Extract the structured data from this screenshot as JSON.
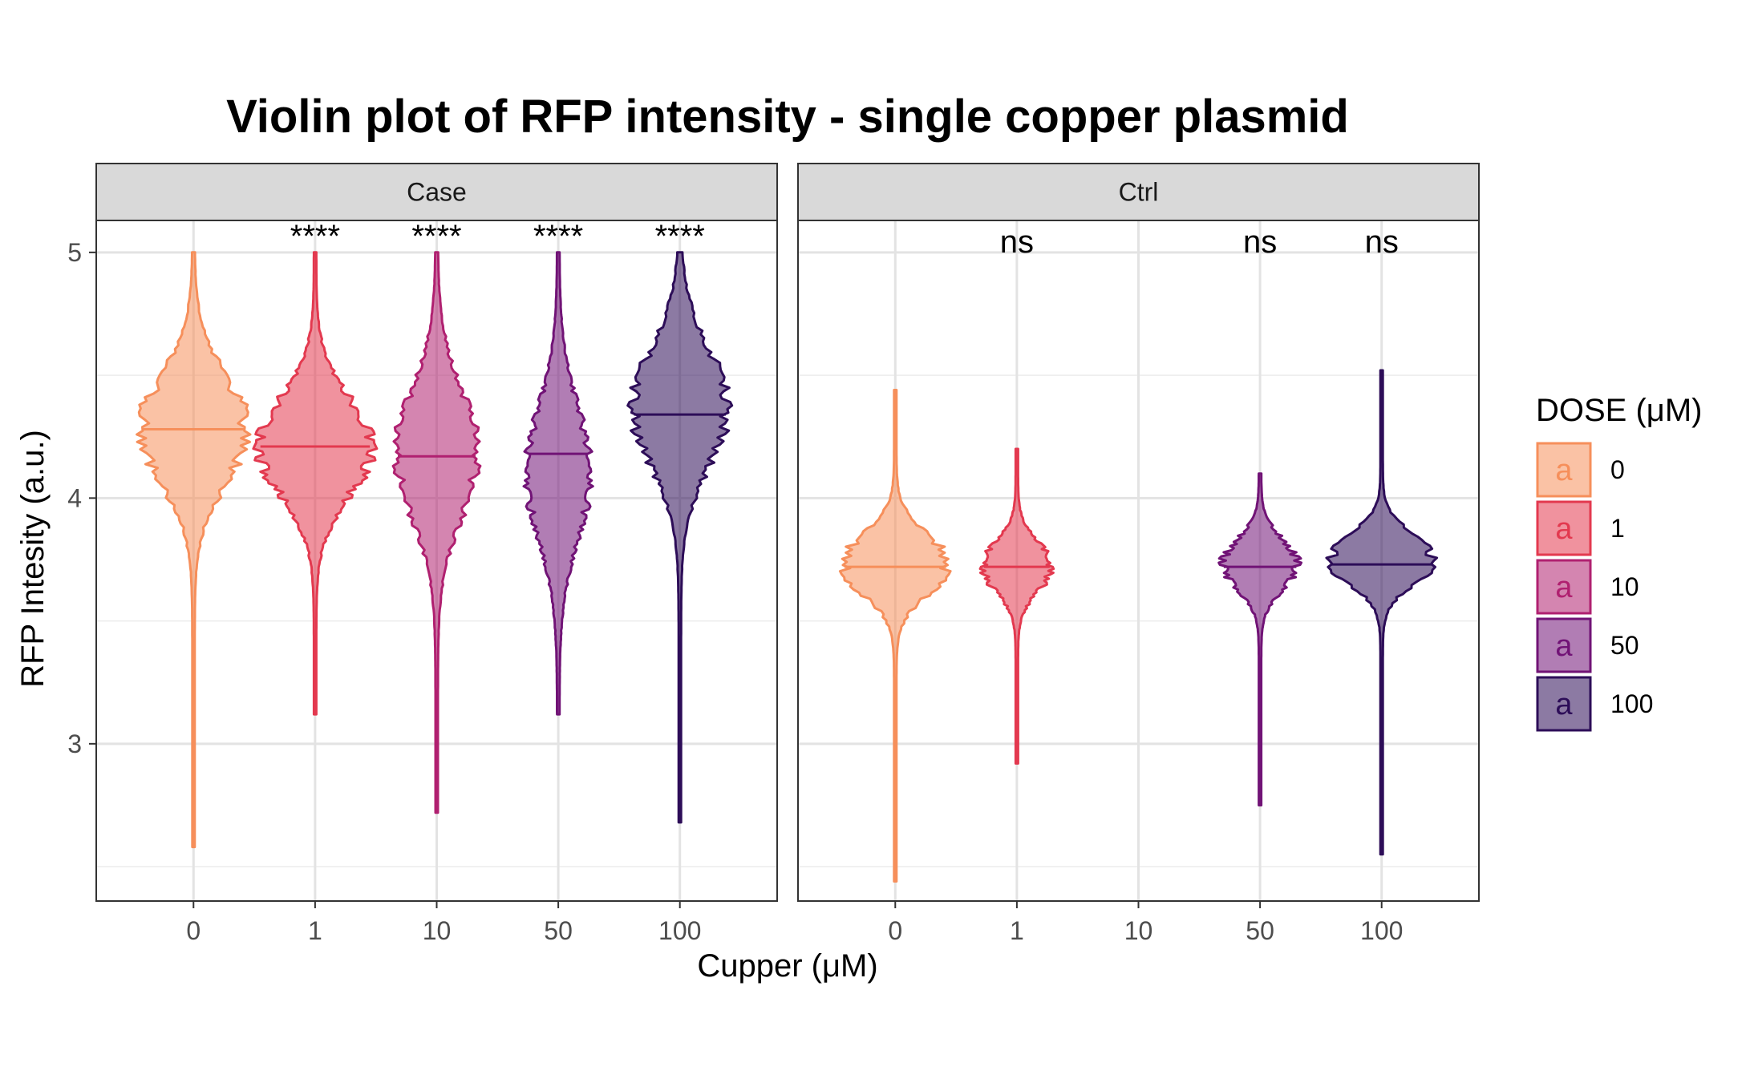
{
  "chart_data": {
    "type": "violin",
    "title": "Violin plot of RFP intensity - single copper plasmid",
    "xlabel": "Cupper (μM)",
    "ylabel": "RFP Intesity (a.u.)",
    "ylim": [
      2.36,
      5.13
    ],
    "yticks": [
      3,
      4,
      5
    ],
    "categories": [
      "0",
      "1",
      "10",
      "50",
      "100"
    ],
    "legend": {
      "title": "DOSE (μM)",
      "key_glyph": "a",
      "position": "right",
      "items": [
        {
          "label": "0",
          "color": "#F68F5B"
        },
        {
          "label": "1",
          "color": "#E3394F"
        },
        {
          "label": "10",
          "color": "#B02070"
        },
        {
          "label": "50",
          "color": "#711376"
        },
        {
          "label": "100",
          "color": "#2D0D58"
        }
      ]
    },
    "facets": [
      {
        "name": "Case",
        "violins": [
          {
            "dose": "0",
            "min": 2.58,
            "max": 5.0,
            "median": 4.28,
            "peak": 4.28,
            "spread": 0.22,
            "width": 0.42,
            "significance": ""
          },
          {
            "dose": "1",
            "min": 3.12,
            "max": 5.0,
            "median": 4.21,
            "peak": 4.21,
            "spread": 0.2,
            "width": 0.45,
            "significance": "****"
          },
          {
            "dose": "10",
            "min": 2.72,
            "max": 5.0,
            "median": 4.17,
            "peak": 4.18,
            "spread": 0.26,
            "width": 0.32,
            "significance": "****"
          },
          {
            "dose": "50",
            "min": 3.12,
            "max": 5.0,
            "median": 4.18,
            "peak": 4.1,
            "spread": 0.27,
            "width": 0.25,
            "significance": "****"
          },
          {
            "dose": "100",
            "min": 2.68,
            "max": 5.0,
            "median": 4.34,
            "peak": 4.37,
            "spread": 0.24,
            "width": 0.38,
            "significance": "****"
          }
        ]
      },
      {
        "name": "Ctrl",
        "violins": [
          {
            "dose": "0",
            "min": 2.44,
            "max": 4.44,
            "median": 3.72,
            "peak": 3.73,
            "spread": 0.12,
            "width": 0.42,
            "significance": ""
          },
          {
            "dose": "1",
            "min": 2.92,
            "max": 4.2,
            "median": 3.72,
            "peak": 3.72,
            "spread": 0.1,
            "width": 0.27,
            "significance": "ns"
          },
          {
            "dose": "50",
            "min": 2.75,
            "max": 4.1,
            "median": 3.72,
            "peak": 3.73,
            "spread": 0.1,
            "width": 0.3,
            "significance": "ns"
          },
          {
            "dose": "100",
            "min": 2.55,
            "max": 4.52,
            "median": 3.73,
            "peak": 3.75,
            "spread": 0.1,
            "width": 0.42,
            "significance": "ns"
          }
        ]
      }
    ]
  }
}
